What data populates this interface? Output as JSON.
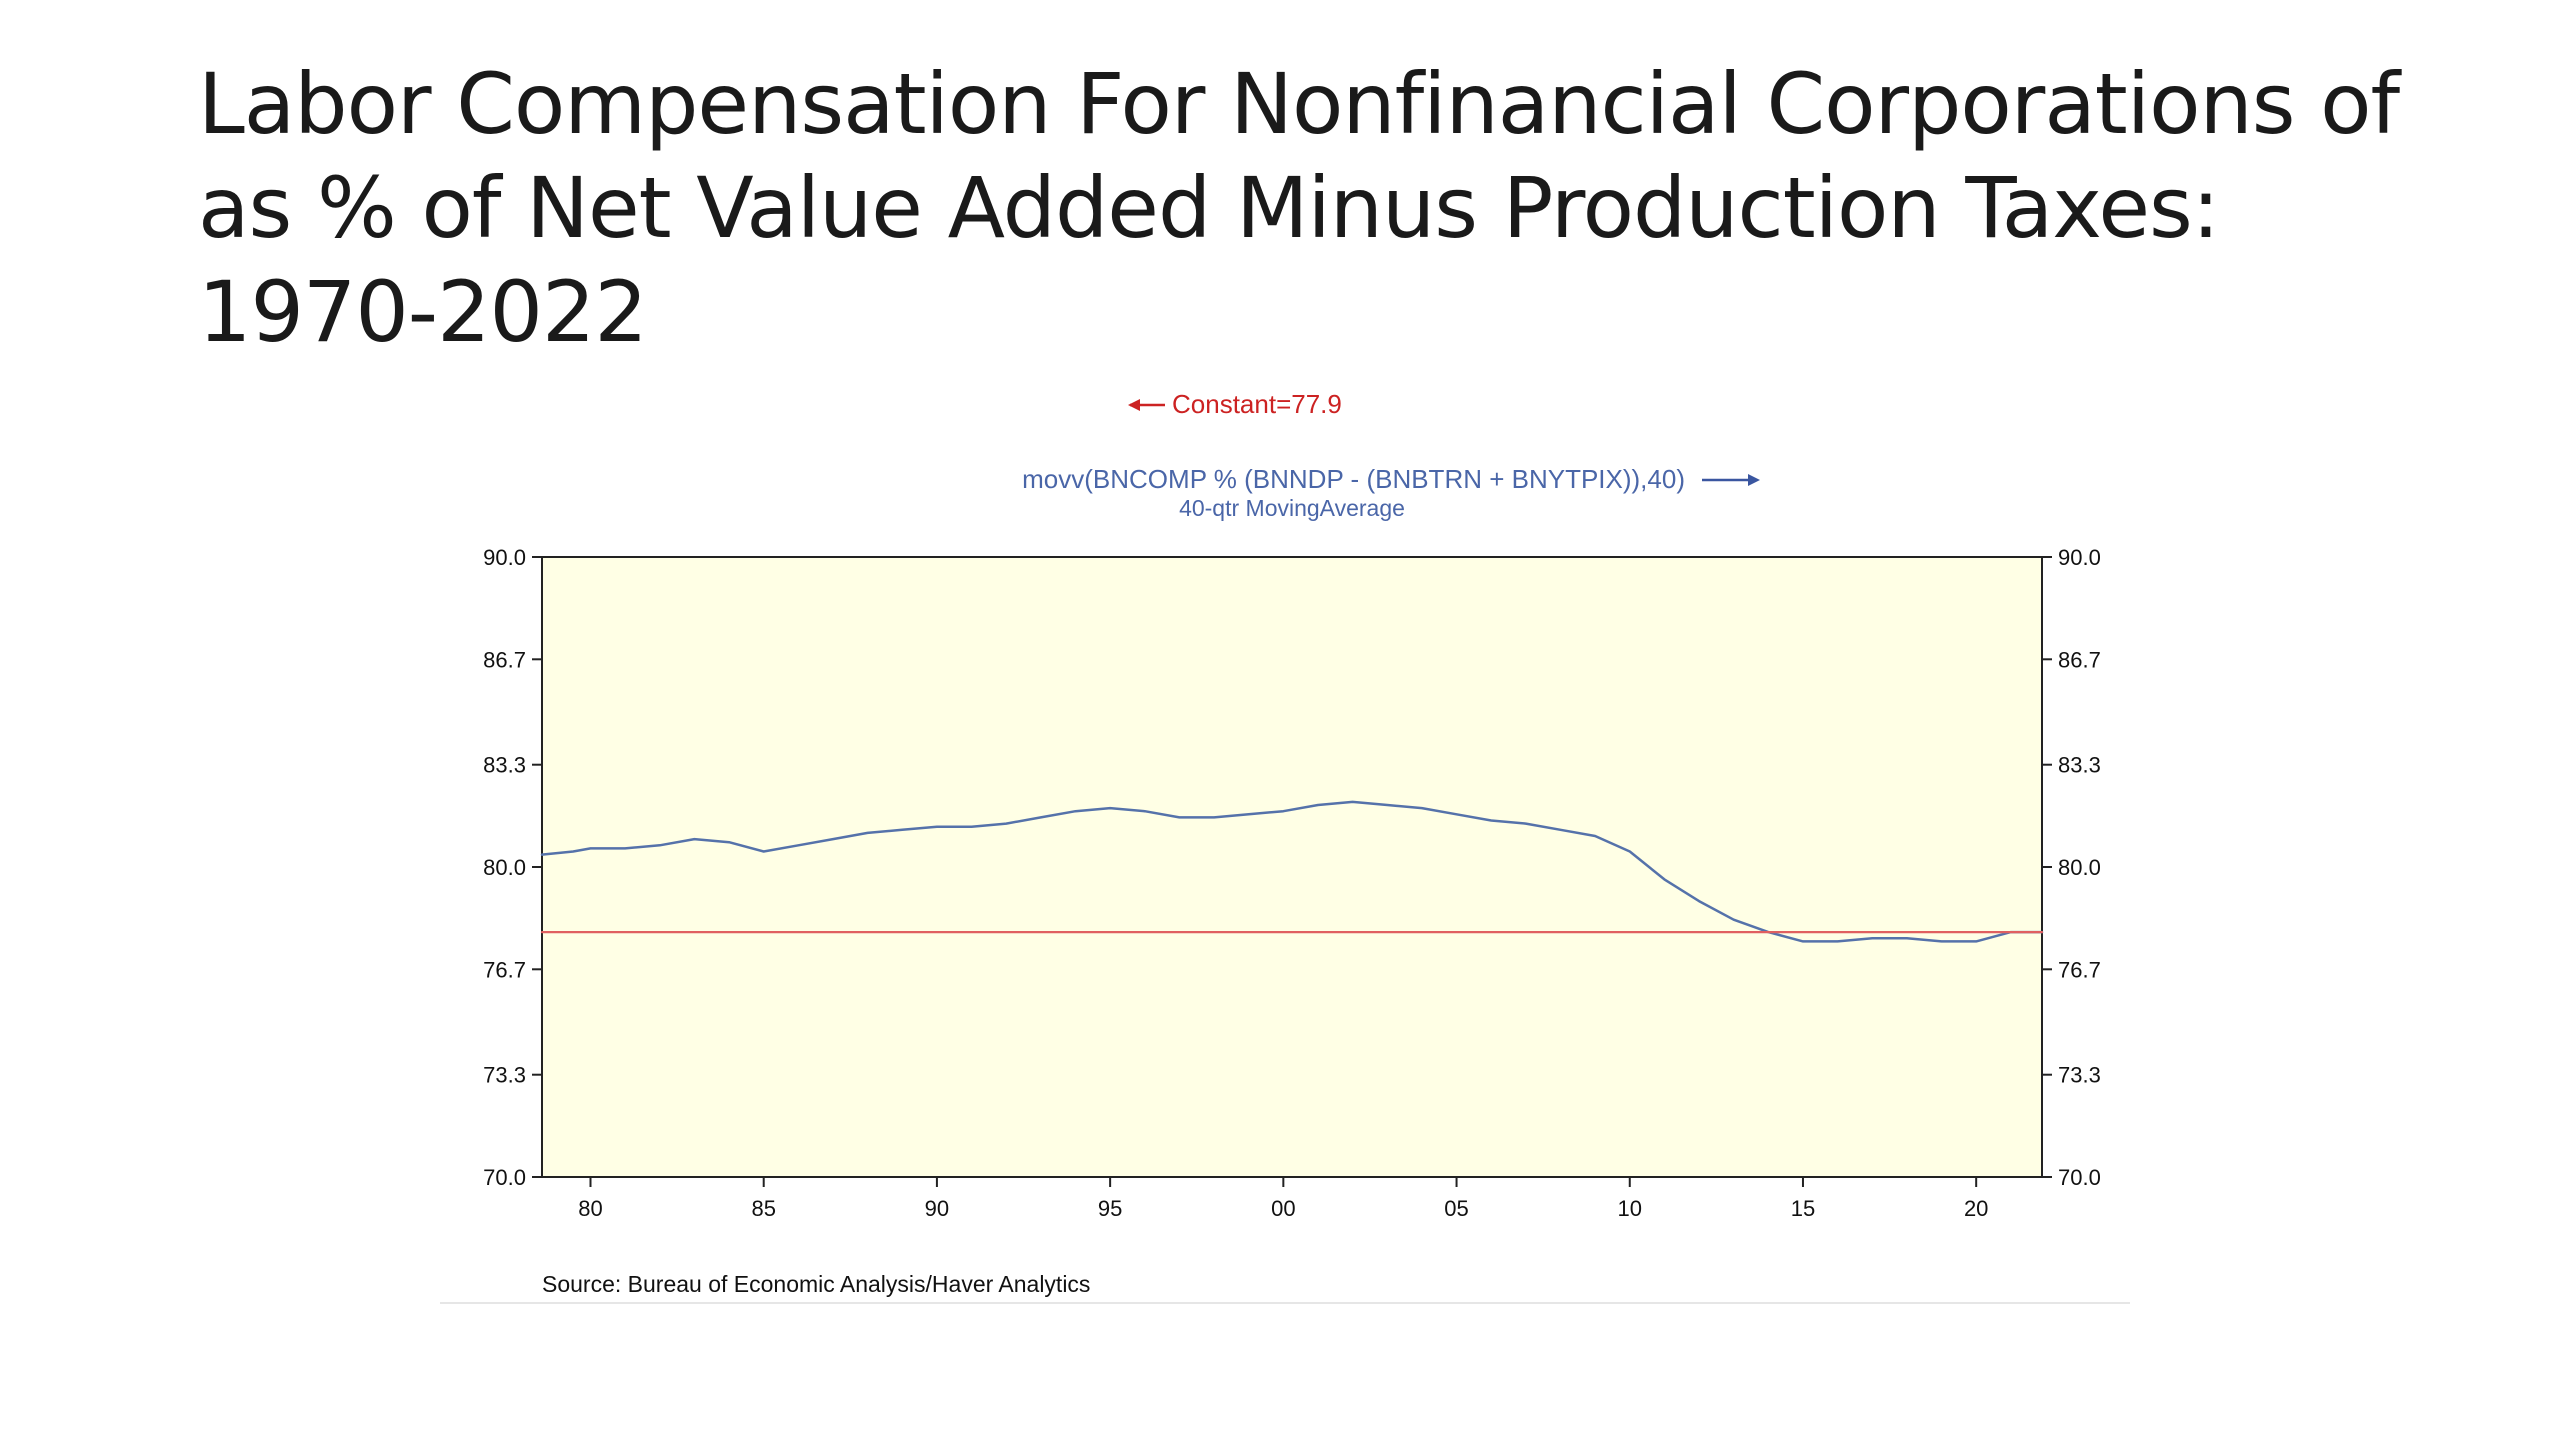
{
  "slide": {
    "title": "Labor Compensation For Nonfinancial Corporations of as % of Net Value Added Minus Production Taxes: 1970-2022"
  },
  "chart_data": {
    "type": "line",
    "legend": {
      "constant_label": "Constant=77.9",
      "series_label_line1": "movv(BNCOMP % (BNNDP - (BNBTRN + BNYTPIX)),40)",
      "series_label_line2": "40-qtr MovingAverage",
      "constant_axis": "left",
      "series_axis": "right"
    },
    "source": "Source:  Bureau of Economic Analysis/Haver Analytics",
    "xlim": [
      1978.6,
      2021.9
    ],
    "ylim": [
      70.0,
      90.0
    ],
    "y_ticks": [
      "90.0",
      "86.7",
      "83.3",
      "80.0",
      "76.7",
      "73.3",
      "70.0"
    ],
    "y_tick_values": [
      90.0,
      86.7,
      83.3,
      80.0,
      76.7,
      73.3,
      70.0
    ],
    "x_ticks": [
      "80",
      "85",
      "90",
      "95",
      "00",
      "05",
      "10",
      "15",
      "20"
    ],
    "x_tick_values": [
      1980,
      1985,
      1990,
      1995,
      2000,
      2005,
      2010,
      2015,
      2020
    ],
    "grid": false,
    "plot_background": "#ffffe5",
    "series": [
      {
        "name": "movv(BNCOMP % (BNNDP - (BNBTRN + BNYTPIX)),40)",
        "color": "#5572aa",
        "x": [
          1978.6,
          1979.5,
          1980.0,
          1981.0,
          1982.0,
          1983.0,
          1984.0,
          1985.0,
          1986.0,
          1987.0,
          1988.0,
          1989.0,
          1990.0,
          1991.0,
          1992.0,
          1993.0,
          1994.0,
          1995.0,
          1996.0,
          1997.0,
          1998.0,
          1999.0,
          2000.0,
          2001.0,
          2002.0,
          2003.0,
          2004.0,
          2005.0,
          2006.0,
          2007.0,
          2008.0,
          2009.0,
          2010.0,
          2011.0,
          2012.0,
          2013.0,
          2014.0,
          2015.0,
          2016.0,
          2017.0,
          2018.0,
          2019.0,
          2020.0,
          2021.0,
          2021.9
        ],
        "values": [
          80.4,
          80.5,
          80.6,
          80.6,
          80.7,
          80.9,
          80.8,
          80.5,
          80.7,
          80.9,
          81.1,
          81.2,
          81.3,
          81.3,
          81.4,
          81.6,
          81.8,
          81.9,
          81.8,
          81.6,
          81.6,
          81.7,
          81.8,
          82.0,
          82.1,
          82.0,
          81.9,
          81.7,
          81.5,
          81.4,
          81.2,
          81.0,
          80.5,
          79.6,
          78.9,
          78.3,
          77.9,
          77.6,
          77.6,
          77.7,
          77.7,
          77.6,
          77.6,
          77.9,
          77.9
        ]
      },
      {
        "name": "Constant=77.9",
        "color": "#e06060",
        "x": [
          1978.6,
          2021.9
        ],
        "values": [
          77.9,
          77.9
        ]
      }
    ]
  }
}
